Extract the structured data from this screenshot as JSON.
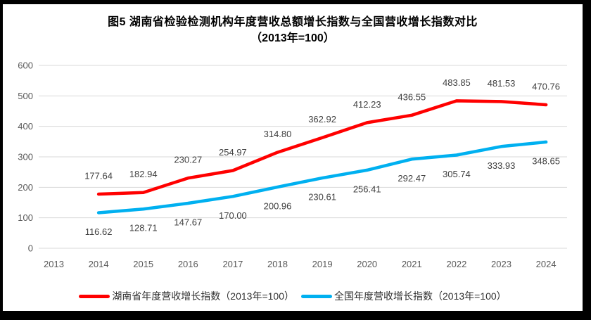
{
  "chart_data": {
    "type": "line",
    "title": "图5 湖南省检验检测机构年度营收总额增长指数与全国营收增长指数对比",
    "subtitle": "（2013年=100）",
    "categories": [
      "2013",
      "2014",
      "2015",
      "2016",
      "2017",
      "2018",
      "2019",
      "2020",
      "2021",
      "2022",
      "2023",
      "2024"
    ],
    "series": [
      {
        "name": "湖南省年度营收增长指数（2013年=100）",
        "color": "#ff0000",
        "label_position": "above",
        "values": [
          null,
          177.64,
          182.94,
          230.27,
          254.97,
          314.8,
          362.92,
          412.23,
          436.55,
          483.85,
          481.53,
          470.76
        ]
      },
      {
        "name": "全国年度营收增长指数（2013年=100）",
        "color": "#00b0f0",
        "label_position": "below",
        "values": [
          null,
          116.62,
          128.71,
          147.67,
          170.0,
          200.96,
          230.61,
          256.41,
          292.47,
          305.74,
          333.93,
          348.65
        ]
      }
    ],
    "ylim": [
      0,
      600
    ],
    "ytick_step": 100,
    "grid": true,
    "legend_position": "bottom",
    "colors": {
      "gridline": "#d9d9d9",
      "axis_text": "#595959",
      "data_label_text": "#404040",
      "title_text": "#000000"
    }
  }
}
